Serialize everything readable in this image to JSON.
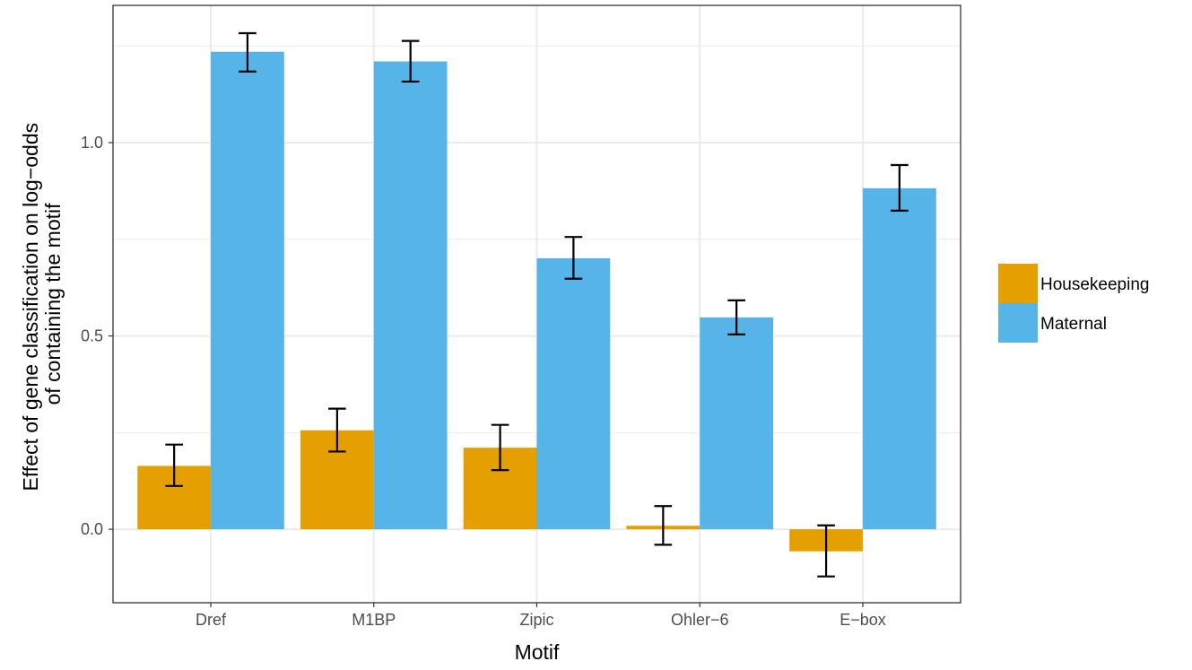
{
  "chart_data": {
    "type": "bar",
    "xlabel": "Motif",
    "ylabel_lines": [
      "Effect of gene classification on log−odds",
      "of containing the motif"
    ],
    "categories": [
      "Dref",
      "M1BP",
      "Zipic",
      "Ohler−6",
      "E−box"
    ],
    "series": [
      {
        "name": "Housekeeping",
        "color": "#E69F00",
        "values": [
          0.164,
          0.256,
          0.211,
          0.009,
          -0.057
        ],
        "error_low": [
          0.112,
          0.201,
          0.153,
          -0.04,
          -0.122
        ],
        "error_high": [
          0.219,
          0.312,
          0.27,
          0.06,
          0.01
        ]
      },
      {
        "name": "Maternal",
        "color": "#56B4E9",
        "values": [
          1.235,
          1.21,
          0.701,
          0.548,
          0.882
        ],
        "error_low": [
          1.184,
          1.158,
          0.648,
          0.504,
          0.824
        ],
        "error_high": [
          1.283,
          1.263,
          0.756,
          0.592,
          0.942
        ]
      }
    ],
    "ylim": [
      -0.19,
      1.355
    ],
    "yticks": [
      0.0,
      0.5,
      1.0
    ],
    "ytick_labels": [
      "0.0",
      "0.5",
      "1.0"
    ],
    "grid": true,
    "legend_position": "right"
  }
}
